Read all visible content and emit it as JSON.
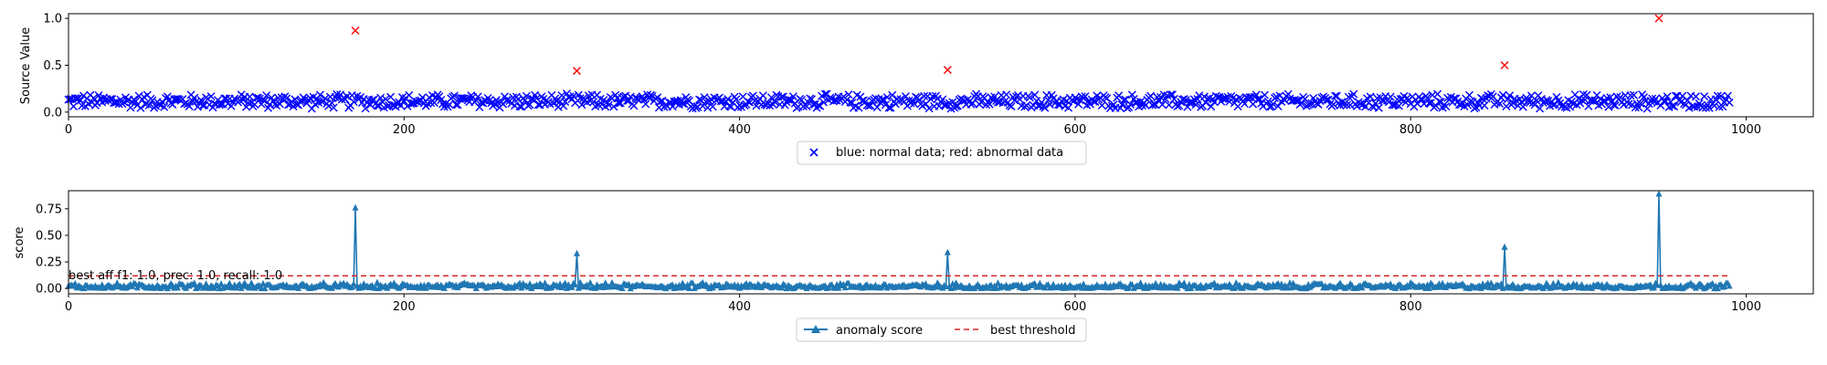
{
  "chart_data": [
    {
      "type": "scatter",
      "xlabel": "",
      "ylabel": "Source Value",
      "xlim": [
        0,
        1040
      ],
      "ylim": [
        -0.05,
        1.05
      ],
      "xticks": [
        0,
        200,
        400,
        600,
        800,
        1000
      ],
      "yticks": [
        0.0,
        0.5,
        1.0
      ],
      "ytick_labels": [
        "0.0",
        "0.5",
        "1.0"
      ],
      "grid": false,
      "legend_position": "below plot, centered",
      "legend": [
        {
          "label": "blue: normal data; red: abnormal data",
          "marker": "x",
          "color": "#0000ff"
        }
      ],
      "series": [
        {
          "color": "#0000ff",
          "marker": "x",
          "x_range": [
            0,
            990
          ],
          "typical_range": [
            0.03,
            0.2
          ]
        },
        {
          "color": "#ff0000",
          "marker": "x",
          "x": [
            171,
            303,
            524,
            856,
            948
          ],
          "y": [
            0.87,
            0.44,
            0.45,
            0.5,
            1.0
          ]
        }
      ]
    },
    {
      "type": "line",
      "xlabel": "",
      "ylabel": "score",
      "xlim": [
        0,
        1040
      ],
      "ylim": [
        -0.05,
        0.92
      ],
      "xticks": [
        0,
        200,
        400,
        600,
        800,
        1000
      ],
      "yticks": [
        0.0,
        0.25,
        0.5,
        0.75
      ],
      "ytick_labels": [
        "0.00",
        "0.25",
        "0.50",
        "0.75"
      ],
      "grid": false,
      "legend_position": "below plot, centered",
      "legend": [
        {
          "label": "anomaly score",
          "style": "solid line with triangle markers",
          "color": "#1f77b4"
        },
        {
          "label": "best threshold",
          "style": "dashed",
          "color": "#d62728"
        }
      ],
      "annotation": "best aff f1: 1.0, prec: 1.0, recall: 1.0",
      "threshold": 0.12,
      "threshold_x_range": [
        0,
        990
      ],
      "series": [
        {
          "color": "#1f77b4",
          "marker": "^",
          "x_range": [
            0,
            990
          ],
          "typical_range": [
            0.0,
            0.06
          ],
          "peaks": {
            "x": [
              171,
              303,
              524,
              856,
              948
            ],
            "y": [
              0.76,
              0.33,
              0.34,
              0.39,
              0.89
            ]
          }
        }
      ]
    }
  ]
}
